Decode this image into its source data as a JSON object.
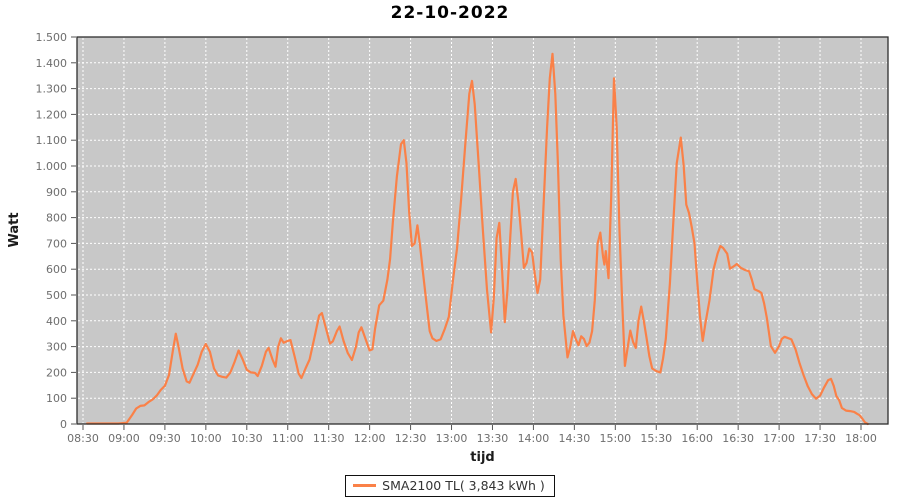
{
  "title": "22-10-2022",
  "legend": {
    "label": "SMA2100 TL( 3,843 kWh )"
  },
  "colors": {
    "line": "#FA8148",
    "plot_background": "#C8C8C8",
    "grid": "#FFFFFF",
    "plot_border": "#2E2E2E",
    "tick_mark": "#555555",
    "tick_label": "#6E6E6E",
    "title_text": "#000000"
  },
  "chart_data": {
    "type": "line",
    "title": "22-10-2022",
    "xlabel": "tijd",
    "ylabel": "Watt",
    "ylim": [
      0,
      1500
    ],
    "x_range": [
      "08:26",
      "18:20"
    ],
    "grid": true,
    "grid_style": "white dashed on gray",
    "legend_position": "bottom-center",
    "x_ticks": [
      "08:30",
      "09:00",
      "09:30",
      "10:00",
      "10:30",
      "11:00",
      "11:30",
      "12:00",
      "12:30",
      "13:00",
      "13:30",
      "14:00",
      "14:30",
      "15:00",
      "15:30",
      "16:00",
      "16:30",
      "17:00",
      "17:30",
      "18:00"
    ],
    "y_ticks": [
      {
        "value": 0,
        "label": "0"
      },
      {
        "value": 100,
        "label": "100"
      },
      {
        "value": 200,
        "label": "200"
      },
      {
        "value": 300,
        "label": "300"
      },
      {
        "value": 400,
        "label": "400"
      },
      {
        "value": 500,
        "label": "500"
      },
      {
        "value": 600,
        "label": "600"
      },
      {
        "value": 700,
        "label": "700"
      },
      {
        "value": 800,
        "label": "800"
      },
      {
        "value": 900,
        "label": "900"
      },
      {
        "value": 1000,
        "label": "1.000"
      },
      {
        "value": 1100,
        "label": "1.100"
      },
      {
        "value": 1200,
        "label": "1.200"
      },
      {
        "value": 1300,
        "label": "1.300"
      },
      {
        "value": 1400,
        "label": "1.400"
      },
      {
        "value": 1500,
        "label": "1.500"
      }
    ],
    "series": [
      {
        "name": "SMA2100 TL( 3,843 kWh )",
        "color": "#FA8148",
        "points": [
          [
            "08:33",
            2
          ],
          [
            "08:40",
            2
          ],
          [
            "08:48",
            2
          ],
          [
            "08:56",
            2
          ],
          [
            "09:02",
            5
          ],
          [
            "09:06",
            35
          ],
          [
            "09:09",
            60
          ],
          [
            "09:12",
            70
          ],
          [
            "09:15",
            72
          ],
          [
            "09:18",
            85
          ],
          [
            "09:21",
            95
          ],
          [
            "09:24",
            110
          ],
          [
            "09:27",
            132
          ],
          [
            "09:30",
            148
          ],
          [
            "09:33",
            190
          ],
          [
            "09:36",
            290
          ],
          [
            "09:38",
            350
          ],
          [
            "09:40",
            300
          ],
          [
            "09:43",
            215
          ],
          [
            "09:46",
            165
          ],
          [
            "09:48",
            160
          ],
          [
            "09:51",
            195
          ],
          [
            "09:54",
            230
          ],
          [
            "09:57",
            280
          ],
          [
            "10:00",
            310
          ],
          [
            "10:03",
            280
          ],
          [
            "10:06",
            215
          ],
          [
            "10:09",
            188
          ],
          [
            "10:12",
            183
          ],
          [
            "10:15",
            180
          ],
          [
            "10:18",
            200
          ],
          [
            "10:21",
            240
          ],
          [
            "10:24",
            285
          ],
          [
            "10:27",
            250
          ],
          [
            "10:30",
            210
          ],
          [
            "10:33",
            200
          ],
          [
            "10:36",
            198
          ],
          [
            "10:38",
            186
          ],
          [
            "10:41",
            225
          ],
          [
            "10:44",
            280
          ],
          [
            "10:46",
            295
          ],
          [
            "10:49",
            248
          ],
          [
            "10:51",
            222
          ],
          [
            "10:53",
            300
          ],
          [
            "10:55",
            332
          ],
          [
            "10:57",
            315
          ],
          [
            "11:00",
            322
          ],
          [
            "11:02",
            325
          ],
          [
            "11:05",
            262
          ],
          [
            "11:08",
            195
          ],
          [
            "11:10",
            178
          ],
          [
            "11:13",
            215
          ],
          [
            "11:16",
            250
          ],
          [
            "11:20",
            345
          ],
          [
            "11:23",
            420
          ],
          [
            "11:25",
            430
          ],
          [
            "11:28",
            370
          ],
          [
            "11:31",
            312
          ],
          [
            "11:33",
            320
          ],
          [
            "11:36",
            360
          ],
          [
            "11:38",
            378
          ],
          [
            "11:41",
            320
          ],
          [
            "11:44",
            275
          ],
          [
            "11:47",
            248
          ],
          [
            "11:50",
            300
          ],
          [
            "11:52",
            355
          ],
          [
            "11:54",
            375
          ],
          [
            "11:57",
            330
          ],
          [
            "12:00",
            285
          ],
          [
            "12:02",
            290
          ],
          [
            "12:04",
            370
          ],
          [
            "12:07",
            460
          ],
          [
            "12:10",
            478
          ],
          [
            "12:13",
            560
          ],
          [
            "12:15",
            640
          ],
          [
            "12:17",
            780
          ],
          [
            "12:20",
            960
          ],
          [
            "12:23",
            1085
          ],
          [
            "12:25",
            1100
          ],
          [
            "12:27",
            1010
          ],
          [
            "12:29",
            820
          ],
          [
            "12:31",
            690
          ],
          [
            "12:33",
            700
          ],
          [
            "12:35",
            770
          ],
          [
            "12:37",
            690
          ],
          [
            "12:39",
            590
          ],
          [
            "12:42",
            450
          ],
          [
            "12:44",
            360
          ],
          [
            "12:46",
            332
          ],
          [
            "12:49",
            322
          ],
          [
            "12:52",
            328
          ],
          [
            "12:55",
            368
          ],
          [
            "12:58",
            415
          ],
          [
            "13:01",
            555
          ],
          [
            "13:04",
            680
          ],
          [
            "13:07",
            870
          ],
          [
            "13:10",
            1080
          ],
          [
            "13:13",
            1280
          ],
          [
            "13:15",
            1330
          ],
          [
            "13:17",
            1240
          ],
          [
            "13:20",
            1000
          ],
          [
            "13:23",
            750
          ],
          [
            "13:26",
            520
          ],
          [
            "13:29",
            355
          ],
          [
            "13:31",
            490
          ],
          [
            "13:33",
            720
          ],
          [
            "13:35",
            780
          ],
          [
            "13:37",
            600
          ],
          [
            "13:39",
            395
          ],
          [
            "13:41",
            520
          ],
          [
            "13:43",
            720
          ],
          [
            "13:45",
            900
          ],
          [
            "13:47",
            950
          ],
          [
            "13:49",
            860
          ],
          [
            "13:51",
            740
          ],
          [
            "13:53",
            605
          ],
          [
            "13:55",
            625
          ],
          [
            "13:57",
            680
          ],
          [
            "13:59",
            665
          ],
          [
            "14:01",
            580
          ],
          [
            "14:03",
            508
          ],
          [
            "14:05",
            560
          ],
          [
            "14:07",
            800
          ],
          [
            "14:10",
            1150
          ],
          [
            "14:12",
            1340
          ],
          [
            "14:14",
            1435
          ],
          [
            "14:16",
            1280
          ],
          [
            "14:18",
            1000
          ],
          [
            "14:20",
            640
          ],
          [
            "14:22",
            420
          ],
          [
            "14:25",
            258
          ],
          [
            "14:27",
            300
          ],
          [
            "14:29",
            360
          ],
          [
            "14:31",
            330
          ],
          [
            "14:33",
            305
          ],
          [
            "14:35",
            340
          ],
          [
            "14:37",
            330
          ],
          [
            "14:39",
            302
          ],
          [
            "14:41",
            315
          ],
          [
            "14:43",
            360
          ],
          [
            "14:45",
            480
          ],
          [
            "14:47",
            700
          ],
          [
            "14:49",
            742
          ],
          [
            "14:51",
            650
          ],
          [
            "14:52",
            618
          ],
          [
            "14:53",
            670
          ],
          [
            "14:55",
            565
          ],
          [
            "14:57",
            880
          ],
          [
            "14:59",
            1340
          ],
          [
            "15:01",
            1150
          ],
          [
            "15:03",
            760
          ],
          [
            "15:05",
            480
          ],
          [
            "15:07",
            225
          ],
          [
            "15:09",
            295
          ],
          [
            "15:11",
            362
          ],
          [
            "15:13",
            318
          ],
          [
            "15:15",
            295
          ],
          [
            "15:17",
            400
          ],
          [
            "15:19",
            455
          ],
          [
            "15:21",
            395
          ],
          [
            "15:23",
            330
          ],
          [
            "15:25",
            262
          ],
          [
            "15:27",
            215
          ],
          [
            "15:30",
            205
          ],
          [
            "15:33",
            200
          ],
          [
            "15:35",
            255
          ],
          [
            "15:37",
            330
          ],
          [
            "15:40",
            545
          ],
          [
            "15:42",
            735
          ],
          [
            "15:45",
            1010
          ],
          [
            "15:48",
            1110
          ],
          [
            "15:50",
            1005
          ],
          [
            "15:52",
            850
          ],
          [
            "15:54",
            818
          ],
          [
            "15:56",
            762
          ],
          [
            "15:58",
            700
          ],
          [
            "16:00",
            555
          ],
          [
            "16:02",
            420
          ],
          [
            "16:04",
            322
          ],
          [
            "16:06",
            390
          ],
          [
            "16:09",
            480
          ],
          [
            "16:12",
            600
          ],
          [
            "16:15",
            662
          ],
          [
            "16:17",
            690
          ],
          [
            "16:19",
            682
          ],
          [
            "16:22",
            660
          ],
          [
            "16:24",
            602
          ],
          [
            "16:27",
            612
          ],
          [
            "16:29",
            620
          ],
          [
            "16:32",
            605
          ],
          [
            "16:35",
            597
          ],
          [
            "16:38",
            592
          ],
          [
            "16:40",
            560
          ],
          [
            "16:42",
            522
          ],
          [
            "16:45",
            515
          ],
          [
            "16:47",
            508
          ],
          [
            "16:49",
            468
          ],
          [
            "16:51",
            412
          ],
          [
            "16:54",
            302
          ],
          [
            "16:57",
            276
          ],
          [
            "17:00",
            302
          ],
          [
            "17:02",
            330
          ],
          [
            "17:04",
            338
          ],
          [
            "17:06",
            334
          ],
          [
            "17:09",
            328
          ],
          [
            "17:12",
            290
          ],
          [
            "17:15",
            235
          ],
          [
            "17:18",
            188
          ],
          [
            "17:21",
            146
          ],
          [
            "17:24",
            116
          ],
          [
            "17:27",
            98
          ],
          [
            "17:30",
            110
          ],
          [
            "17:33",
            142
          ],
          [
            "17:36",
            170
          ],
          [
            "17:38",
            175
          ],
          [
            "17:40",
            148
          ],
          [
            "17:42",
            108
          ],
          [
            "17:44",
            92
          ],
          [
            "17:46",
            62
          ],
          [
            "17:49",
            52
          ],
          [
            "17:52",
            50
          ],
          [
            "17:55",
            47
          ],
          [
            "17:57",
            40
          ],
          [
            "17:59",
            34
          ],
          [
            "18:01",
            20
          ],
          [
            "18:03",
            6
          ],
          [
            "18:05",
            0
          ]
        ]
      }
    ]
  }
}
